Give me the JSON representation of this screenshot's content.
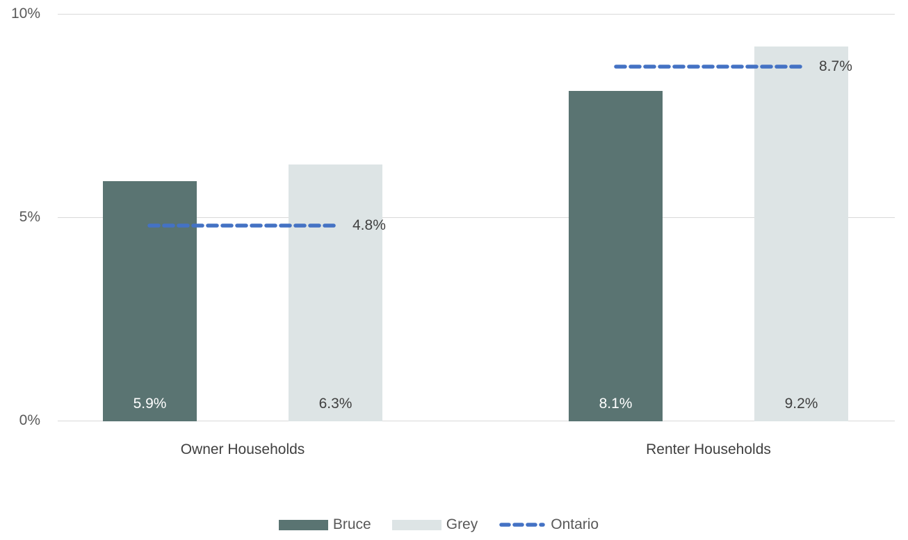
{
  "chart_data": {
    "type": "bar",
    "title": "",
    "categories": [
      "Owner Households",
      "Renter Households"
    ],
    "series": [
      {
        "name": "Bruce",
        "type": "bar",
        "color": "#5a7472",
        "values": [
          5.9,
          8.1
        ],
        "labels": [
          "5.9%",
          "8.1%"
        ]
      },
      {
        "name": "Grey",
        "type": "bar",
        "color": "#dde4e5",
        "values": [
          6.3,
          9.2
        ],
        "labels": [
          "6.3%",
          "9.2%"
        ]
      },
      {
        "name": "Ontario",
        "type": "dashed-line",
        "color": "#4472c4",
        "values": [
          4.8,
          8.7
        ],
        "labels": [
          "4.8%",
          "8.7%"
        ]
      }
    ],
    "yticks": [
      "0%",
      "5%",
      "10%"
    ],
    "ylim": [
      0,
      10
    ],
    "grid": true,
    "gridline_color": "#d9d9d9",
    "legend_position": "bottom"
  },
  "colors": {
    "bruce_bar": "#5a7472",
    "grey_bar": "#dde4e5",
    "ontario_line": "#4472c4",
    "gridline": "#d9d9d9",
    "tick_text": "#595959",
    "label_text": "#404040",
    "bar_label_on_dark": "#ffffff"
  }
}
